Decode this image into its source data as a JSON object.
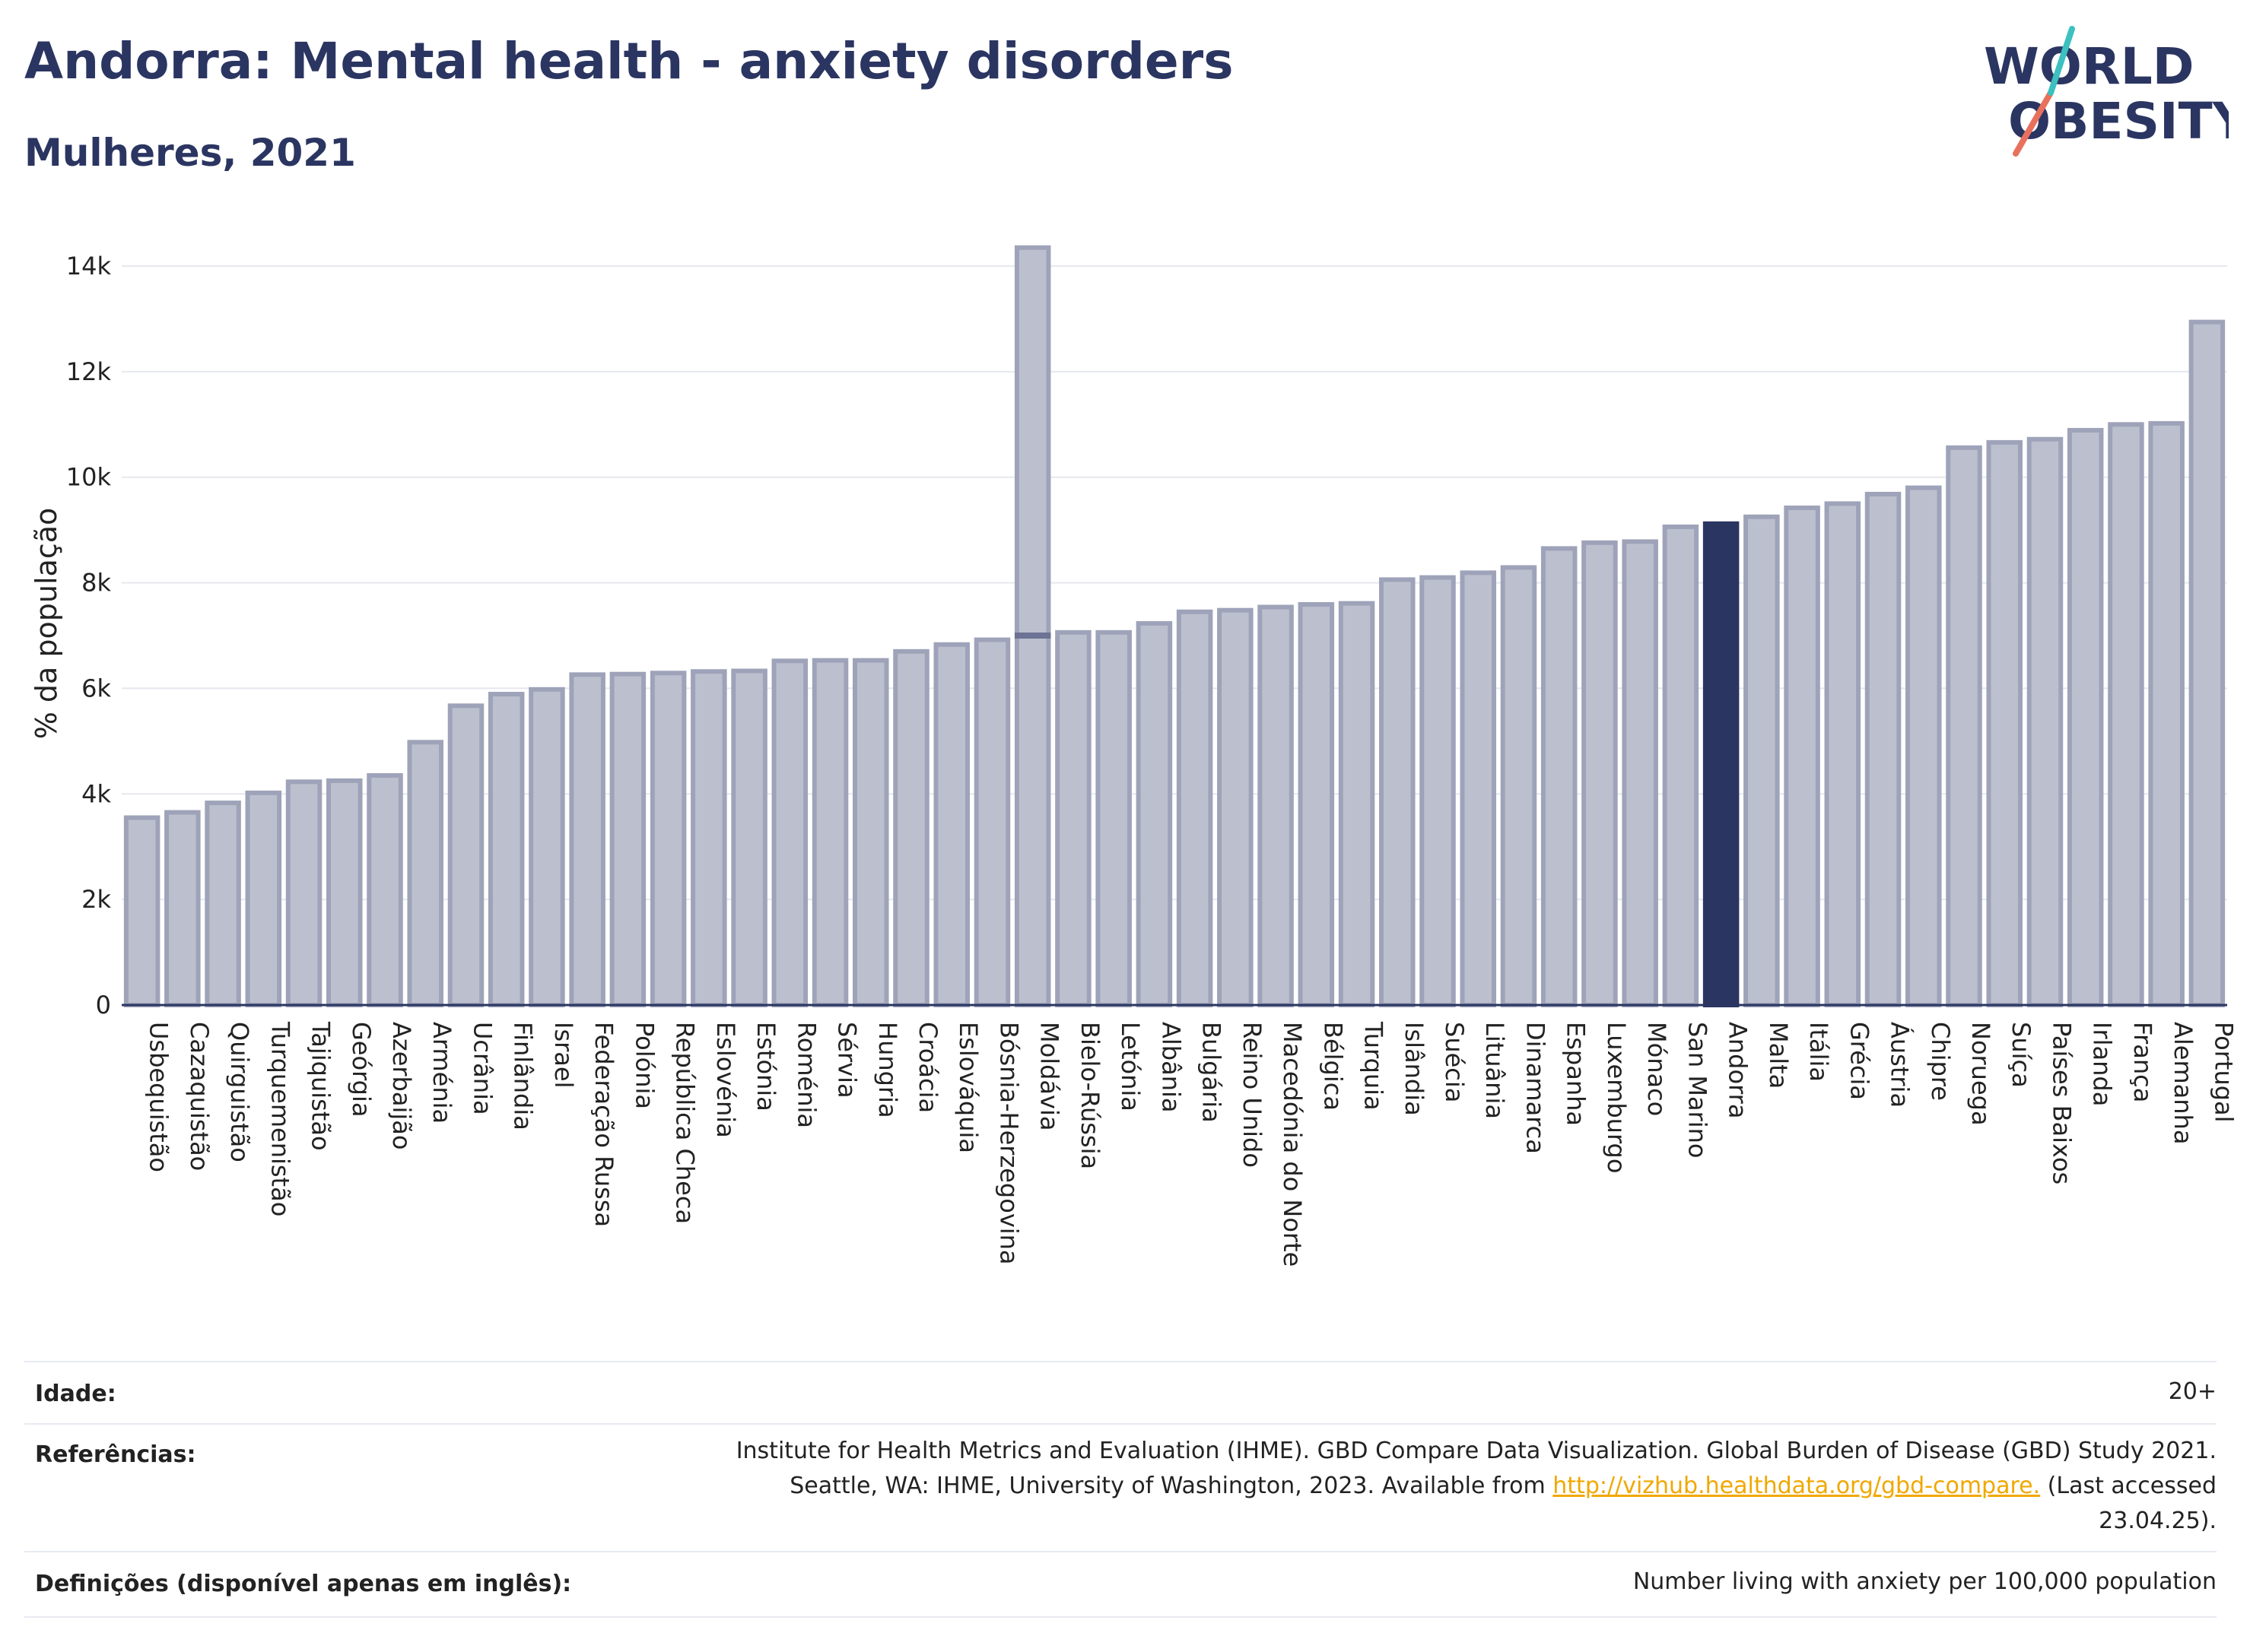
{
  "title": "Andorra: Mental health - anxiety disorders",
  "subtitle": "Mulheres, 2021",
  "logo": {
    "line1": "WORLD",
    "line2": "OBESITY"
  },
  "colors": {
    "bar": "#bcc0ce",
    "bar_edge": "#9ea3b9",
    "highlight": "#2b3561",
    "title": "#2b3561",
    "link": "#f0a800"
  },
  "chart_data": {
    "type": "bar",
    "ylabel": "% da população",
    "ylim": [
      0,
      14500
    ],
    "yticks": [
      0,
      2000,
      4000,
      6000,
      8000,
      10000,
      12000,
      14000
    ],
    "ytick_labels": [
      "0",
      "2k",
      "4k",
      "6k",
      "8k",
      "10k",
      "12k",
      "14k"
    ],
    "grid": true,
    "highlight": "Andorra",
    "categories": [
      "Usbequistão",
      "Cazaquistão",
      "Quirguistão",
      "Turquemenistão",
      "Tajiquistão",
      "Geórgia",
      "Azerbaijão",
      "Arménia",
      "Ucrânia",
      "Finlândia",
      "Israel",
      "Federação Russa",
      "Polónia",
      "República Checa",
      "Eslovénia",
      "Estónia",
      "Roménia",
      "Sérvia",
      "Hungria",
      "Croácia",
      "Eslováquia",
      "Bósnia-Herzegovina",
      "Moldávia",
      "Bielo-Rússia",
      "Letónia",
      "Albânia",
      "Bulgária",
      "Reino Unido",
      "Macedónia do Norte",
      "Bélgica",
      "Turquia",
      "Islândia",
      "Suécia",
      "Lituânia",
      "Dinamarca",
      "Espanha",
      "Luxemburgo",
      "Mónaco",
      "San Marino",
      "Andorra",
      "Malta",
      "Itália",
      "Grécia",
      "Áustria",
      "Chipre",
      "Noruega",
      "Suíça",
      "Países Baixos",
      "Irlanda",
      "França",
      "Alemanha",
      "Portugal"
    ],
    "values": [
      3550,
      3650,
      3830,
      4020,
      4230,
      4250,
      4350,
      4980,
      5670,
      5890,
      5980,
      6260,
      6270,
      6290,
      6320,
      6330,
      6520,
      6530,
      6530,
      6700,
      6830,
      6920,
      14350,
      7060,
      7060,
      7230,
      7450,
      7480,
      7540,
      7590,
      7610,
      8060,
      8100,
      8190,
      8290,
      8650,
      8760,
      8780,
      9060,
      9120,
      9250,
      9420,
      9500,
      9680,
      9800,
      10560,
      10660,
      10720,
      10890,
      11000,
      11020,
      12940
    ],
    "overlay_marks": [
      {
        "category": "Moldávia",
        "value": 7000
      }
    ]
  },
  "metadata": {
    "age_label": "Idade:",
    "age_value": "20+",
    "refs_label": "Referências:",
    "refs_line1": "Institute for Health Metrics and Evaluation (IHME). GBD Compare Data Visualization. Global Burden of Disease (GBD) Study 2021.",
    "refs_line2_pre": "Seattle, WA: IHME, University of Washington, 2023. Available from ",
    "refs_link": "http://vizhub.healthdata.org/gbd-compare.",
    "refs_line2_post": " (Last accessed",
    "refs_line3": "23.04.25).",
    "def_label": "Definições (disponível apenas em inglês):",
    "def_value": "Number living with anxiety per 100,000 population"
  }
}
